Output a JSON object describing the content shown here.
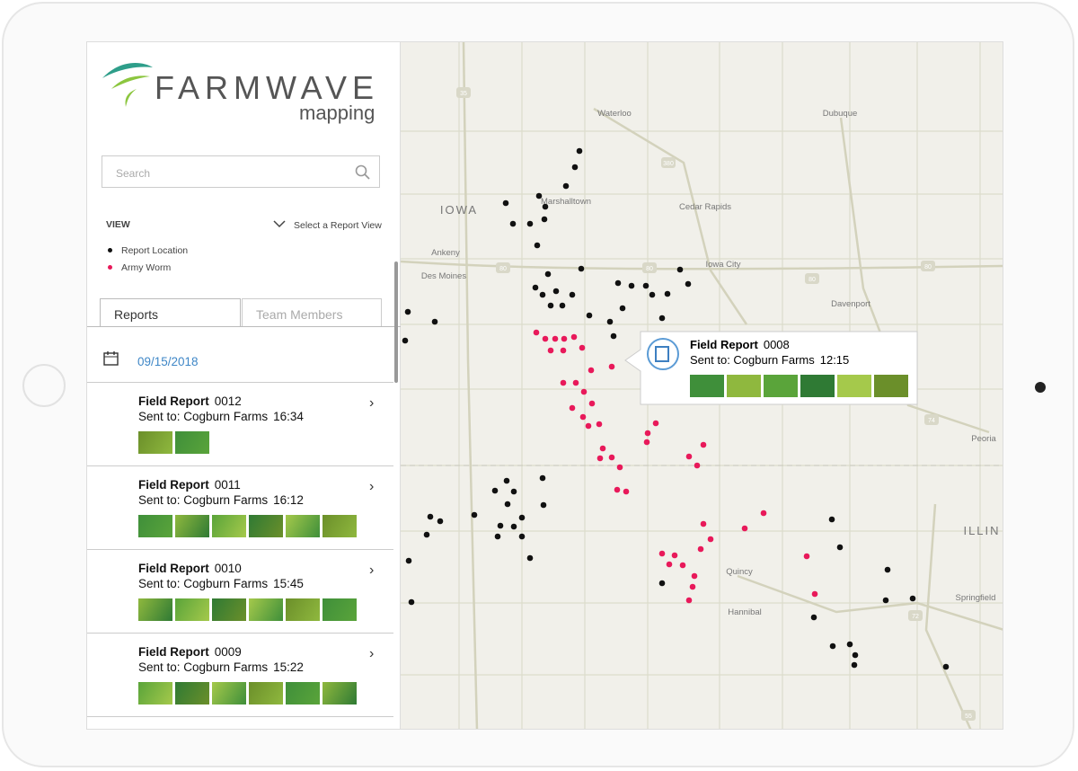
{
  "brand": {
    "name": "FARMWAVE",
    "product": "mapping"
  },
  "search": {
    "placeholder": "Search"
  },
  "view": {
    "label": "VIEW",
    "select": "Select a Report View",
    "legend": [
      {
        "label": "Report Location",
        "color": "#111111"
      },
      {
        "label": "Army Worm",
        "color": "#e8195a"
      }
    ]
  },
  "tabs": [
    "Reports",
    "Team Members"
  ],
  "date": "09/15/2018",
  "reports": [
    {
      "title": "Field Report",
      "number": "0012",
      "sent_to": "Sent to: Cogburn Farms",
      "time": "16:34"
    },
    {
      "title": "Field Report",
      "number": "0011",
      "sent_to": "Sent to: Cogburn Farms",
      "time": "16:12"
    },
    {
      "title": "Field Report",
      "number": "0010",
      "sent_to": "Sent to: Cogburn Farms",
      "time": "15:45"
    },
    {
      "title": "Field Report",
      "number": "0009",
      "sent_to": "Sent to: Cogburn Farms",
      "time": "15:22"
    }
  ],
  "popup": {
    "title": "Field Report",
    "number": "0008",
    "sent_to": "Sent to: Cogburn Farms",
    "time": "12:15"
  },
  "map_labels": [
    "Waterloo",
    "Dubuque",
    "Marshalltown",
    "IOWA",
    "Cedar Rapids",
    "Ankeny",
    "Des Moines",
    "Iowa City",
    "Davenport",
    "Peoria",
    "ILLIN",
    "Quincy",
    "Hannibal",
    "Springfield"
  ],
  "map_shields": [
    "35",
    "380",
    "80",
    "80",
    "80",
    "80",
    "74",
    "72",
    "55"
  ]
}
